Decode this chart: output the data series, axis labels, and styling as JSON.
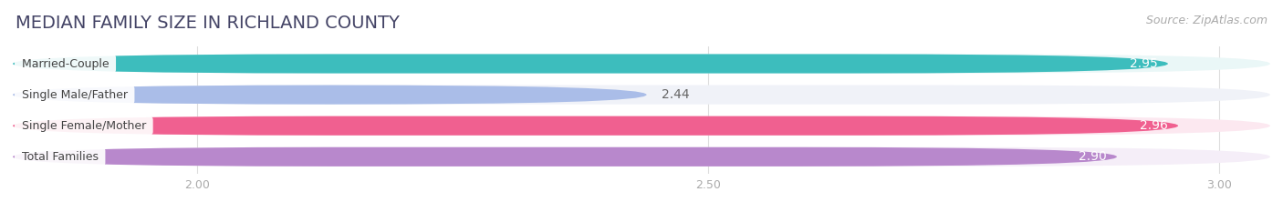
{
  "title": "MEDIAN FAMILY SIZE IN RICHLAND COUNTY",
  "source": "Source: ZipAtlas.com",
  "categories": [
    "Married-Couple",
    "Single Male/Father",
    "Single Female/Mother",
    "Total Families"
  ],
  "values": [
    2.95,
    2.44,
    2.96,
    2.9
  ],
  "bar_colors": [
    "#3dbdbd",
    "#aabde8",
    "#f06090",
    "#b888cc"
  ],
  "bar_bg_colors": [
    "#eaf7f7",
    "#f0f2f8",
    "#fce8f0",
    "#f5eef8"
  ],
  "label_text_colors": [
    "#555555",
    "#555555",
    "#555555",
    "#555555"
  ],
  "xlim_min": 1.82,
  "xlim_max": 3.05,
  "xticks": [
    2.0,
    2.5,
    3.0
  ],
  "title_fontsize": 14,
  "source_fontsize": 9,
  "category_fontsize": 9,
  "value_fontsize": 10,
  "bar_height": 0.62,
  "background_color": "#ffffff"
}
